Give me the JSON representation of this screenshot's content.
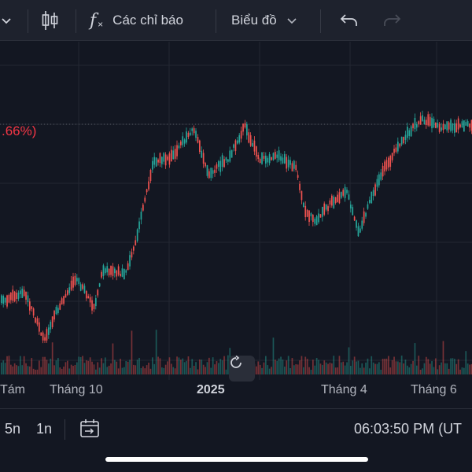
{
  "toolbar": {
    "indicators_label": "Các chỉ báo",
    "chart_type_label": "Biểu đồ"
  },
  "chart": {
    "percent_change": ".66%)",
    "x_labels": [
      "Tám",
      "Tháng 10",
      "2025",
      "Tháng 4",
      "Tháng 6"
    ],
    "colors": {
      "up": "#26a69a",
      "down": "#ef5350",
      "background": "#131722",
      "grid": "#232732"
    }
  },
  "chart_data": {
    "type": "candlestick",
    "x_ticks": [
      "Tám",
      "Tháng 10",
      "2025",
      "Tháng 4",
      "Tháng 6"
    ]
  },
  "bottom_bar": {
    "range_5y": "5n",
    "range_1y": "1n",
    "clock": "06:03:50 PM (UT"
  }
}
